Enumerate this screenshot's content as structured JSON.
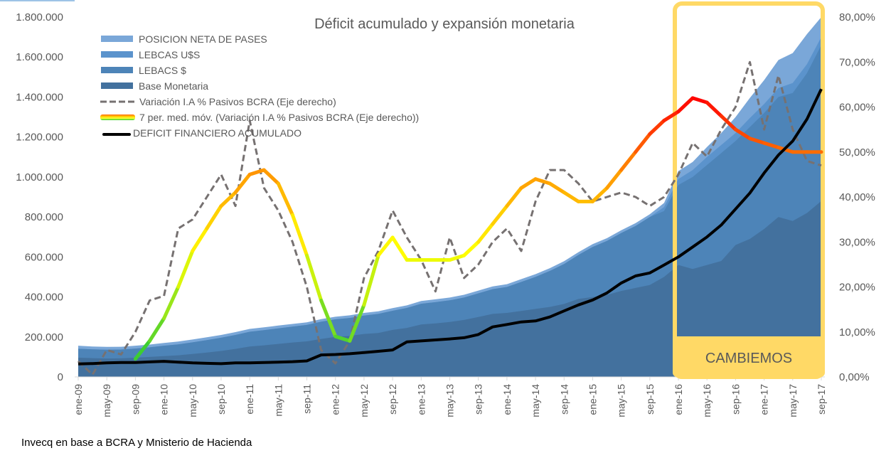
{
  "chart_data": {
    "type": "area",
    "title": "Déficit acumulado y expansión monetaria",
    "source_note": "Invecq en base a BCRA y Mnisterio de Hacienda",
    "annotation": {
      "label": "CAMBIEMOS",
      "from": "dic-15",
      "to": "sep-17",
      "color": "#FFD966"
    },
    "x_tick_labels": [
      "ene-09",
      "may-09",
      "sep-09",
      "ene-10",
      "may-10",
      "sep-10",
      "ene-11",
      "may-11",
      "sep-11",
      "ene-12",
      "may-12",
      "sep-12",
      "ene-13",
      "may-13",
      "sep-13",
      "ene-14",
      "may-14",
      "sep-14",
      "ene-15",
      "may-15",
      "sep-15",
      "ene-16",
      "may-16",
      "sep-16",
      "ene-17",
      "may-17",
      "sep-17"
    ],
    "x": [
      "ene-09",
      "mar-09",
      "may-09",
      "jul-09",
      "sep-09",
      "nov-09",
      "ene-10",
      "mar-10",
      "may-10",
      "jul-10",
      "sep-10",
      "nov-10",
      "ene-11",
      "mar-11",
      "may-11",
      "jul-11",
      "sep-11",
      "nov-11",
      "ene-12",
      "mar-12",
      "may-12",
      "jul-12",
      "sep-12",
      "nov-12",
      "ene-13",
      "mar-13",
      "may-13",
      "jul-13",
      "sep-13",
      "nov-13",
      "ene-14",
      "mar-14",
      "may-14",
      "jul-14",
      "sep-14",
      "nov-14",
      "ene-15",
      "mar-15",
      "may-15",
      "jul-15",
      "sep-15",
      "nov-15",
      "ene-16",
      "mar-16",
      "may-16",
      "jul-16",
      "sep-16",
      "nov-16",
      "ene-17",
      "mar-17",
      "may-17",
      "jul-17",
      "sep-17"
    ],
    "y_left": {
      "label": "",
      "ylim": [
        0,
        1800000
      ],
      "ticks": [
        "0",
        "200.000",
        "400.000",
        "600.000",
        "800.000",
        "1.000.000",
        "1.200.000",
        "1.400.000",
        "1.600.000",
        "1.800.000"
      ]
    },
    "y_right": {
      "label": "",
      "ylim": [
        0,
        80
      ],
      "ticks": [
        "0,00%",
        "10,00%",
        "20,00%",
        "30,00%",
        "40,00%",
        "50,00%",
        "60,00%",
        "70,00%",
        "80,00%"
      ]
    },
    "stacked_series": [
      {
        "name": "Base Monetaria",
        "color": "#43719E",
        "values": [
          96000,
          94000,
          92000,
          93000,
          96000,
          100000,
          104000,
          108000,
          115000,
          122000,
          130000,
          140000,
          152000,
          158000,
          165000,
          172000,
          178000,
          190000,
          200000,
          205000,
          215000,
          220000,
          235000,
          245000,
          262000,
          268000,
          275000,
          285000,
          300000,
          315000,
          320000,
          330000,
          340000,
          350000,
          365000,
          390000,
          400000,
          410000,
          430000,
          445000,
          460000,
          500000,
          560000,
          540000,
          560000,
          580000,
          660000,
          690000,
          740000,
          800000,
          780000,
          820000,
          880000
        ]
      },
      {
        "name": "LEBACS $",
        "color": "#4D84B8",
        "values": [
          45000,
          44000,
          44000,
          44000,
          46000,
          48000,
          52000,
          55000,
          58000,
          62000,
          66000,
          70000,
          74000,
          76000,
          78000,
          80000,
          82000,
          86000,
          88000,
          90000,
          92000,
          95000,
          96000,
          100000,
          104000,
          106000,
          108000,
          112000,
          118000,
          124000,
          130000,
          145000,
          160000,
          180000,
          200000,
          220000,
          250000,
          270000,
          290000,
          310000,
          340000,
          330000,
          400000,
          460000,
          500000,
          540000,
          520000,
          560000,
          580000,
          600000,
          640000,
          700000,
          780000
        ]
      },
      {
        "name": "LEBCAS U$S",
        "color": "#5B93CC",
        "values": [
          0,
          0,
          0,
          0,
          0,
          0,
          0,
          0,
          0,
          0,
          0,
          0,
          0,
          0,
          0,
          0,
          0,
          0,
          0,
          0,
          0,
          0,
          0,
          0,
          0,
          0,
          0,
          0,
          0,
          0,
          0,
          0,
          0,
          0,
          0,
          0,
          0,
          0,
          0,
          0,
          0,
          20000,
          30000,
          35000,
          40000,
          40000,
          40000,
          45000,
          45000,
          45000,
          50000,
          45000,
          40000
        ]
      },
      {
        "name": "POSICION NETA DE PASES",
        "color": "#7AA7D8",
        "values": [
          15000,
          14000,
          14000,
          14000,
          14000,
          14000,
          14000,
          14000,
          14000,
          14000,
          14000,
          14000,
          14000,
          14000,
          14000,
          13000,
          13000,
          13000,
          13000,
          13000,
          13000,
          13000,
          13000,
          13000,
          14000,
          14000,
          14000,
          14000,
          14000,
          14000,
          14000,
          14000,
          14000,
          14000,
          14000,
          14000,
          14000,
          14000,
          14000,
          14000,
          14000,
          20000,
          40000,
          40000,
          50000,
          60000,
          80000,
          100000,
          120000,
          140000,
          150000,
          150000,
          100000
        ]
      }
    ],
    "line_series": [
      {
        "name": "Variación I.A % Pasivos BCRA (Eje derecho)",
        "axis": "right",
        "style": "dashed",
        "color": "#767171",
        "values": [
          3.5,
          0.5,
          6,
          5,
          10,
          17,
          18,
          33,
          35,
          40,
          45,
          38,
          57,
          42,
          37,
          30,
          20,
          6,
          3,
          8,
          22,
          28,
          37,
          31,
          26,
          19,
          31,
          22,
          25,
          30,
          33,
          28,
          39,
          46,
          46,
          43,
          39,
          40,
          41,
          40,
          38,
          40,
          45,
          52,
          49,
          55,
          60,
          70,
          55,
          67,
          55,
          48,
          47
        ]
      },
      {
        "name": "7 per. med. móv. (Variación I.A % Pasivos BCRA (Eje derecho))",
        "axis": "right",
        "style": "gradient",
        "colors": [
          "#33CC33",
          "#FFFF00",
          "#FF9900",
          "#FF0000"
        ],
        "values": [
          null,
          null,
          null,
          null,
          4,
          8,
          13,
          20,
          28,
          33,
          38,
          41,
          45,
          46,
          43,
          36,
          27,
          17,
          9,
          8,
          16,
          27,
          31,
          26,
          26,
          26,
          26,
          27,
          30,
          34,
          38,
          42,
          44,
          43,
          41,
          39,
          39,
          42,
          46,
          50,
          54,
          57,
          59,
          62,
          61,
          58,
          55,
          53,
          52,
          51,
          50,
          50,
          50
        ]
      },
      {
        "name": "DEFICIT FINANCIERO ACUMULADO",
        "axis": "left",
        "style": "solid",
        "color": "#000000",
        "values": [
          65000,
          67000,
          70000,
          72000,
          72000,
          75000,
          78000,
          74000,
          70000,
          68000,
          66000,
          70000,
          70000,
          72000,
          74000,
          76000,
          80000,
          110000,
          112000,
          116000,
          122000,
          128000,
          135000,
          175000,
          180000,
          185000,
          190000,
          196000,
          212000,
          250000,
          262000,
          275000,
          280000,
          300000,
          330000,
          360000,
          385000,
          420000,
          470000,
          505000,
          520000,
          560000,
          600000,
          650000,
          700000,
          760000,
          840000,
          920000,
          1020000,
          1110000,
          1180000,
          1290000,
          1440000
        ]
      }
    ],
    "legend": {
      "placement": "top-left",
      "entries": [
        "POSICION NETA DE PASES",
        "LEBCAS U$S",
        "LEBACS $",
        "Base Monetaria",
        "Variación I.A % Pasivos BCRA (Eje derecho)",
        "7 per. med. móv. (Variación I.A % Pasivos BCRA (Eje derecho))",
        "DEFICIT FINANCIERO ACUMULADO"
      ]
    },
    "grid": false
  }
}
